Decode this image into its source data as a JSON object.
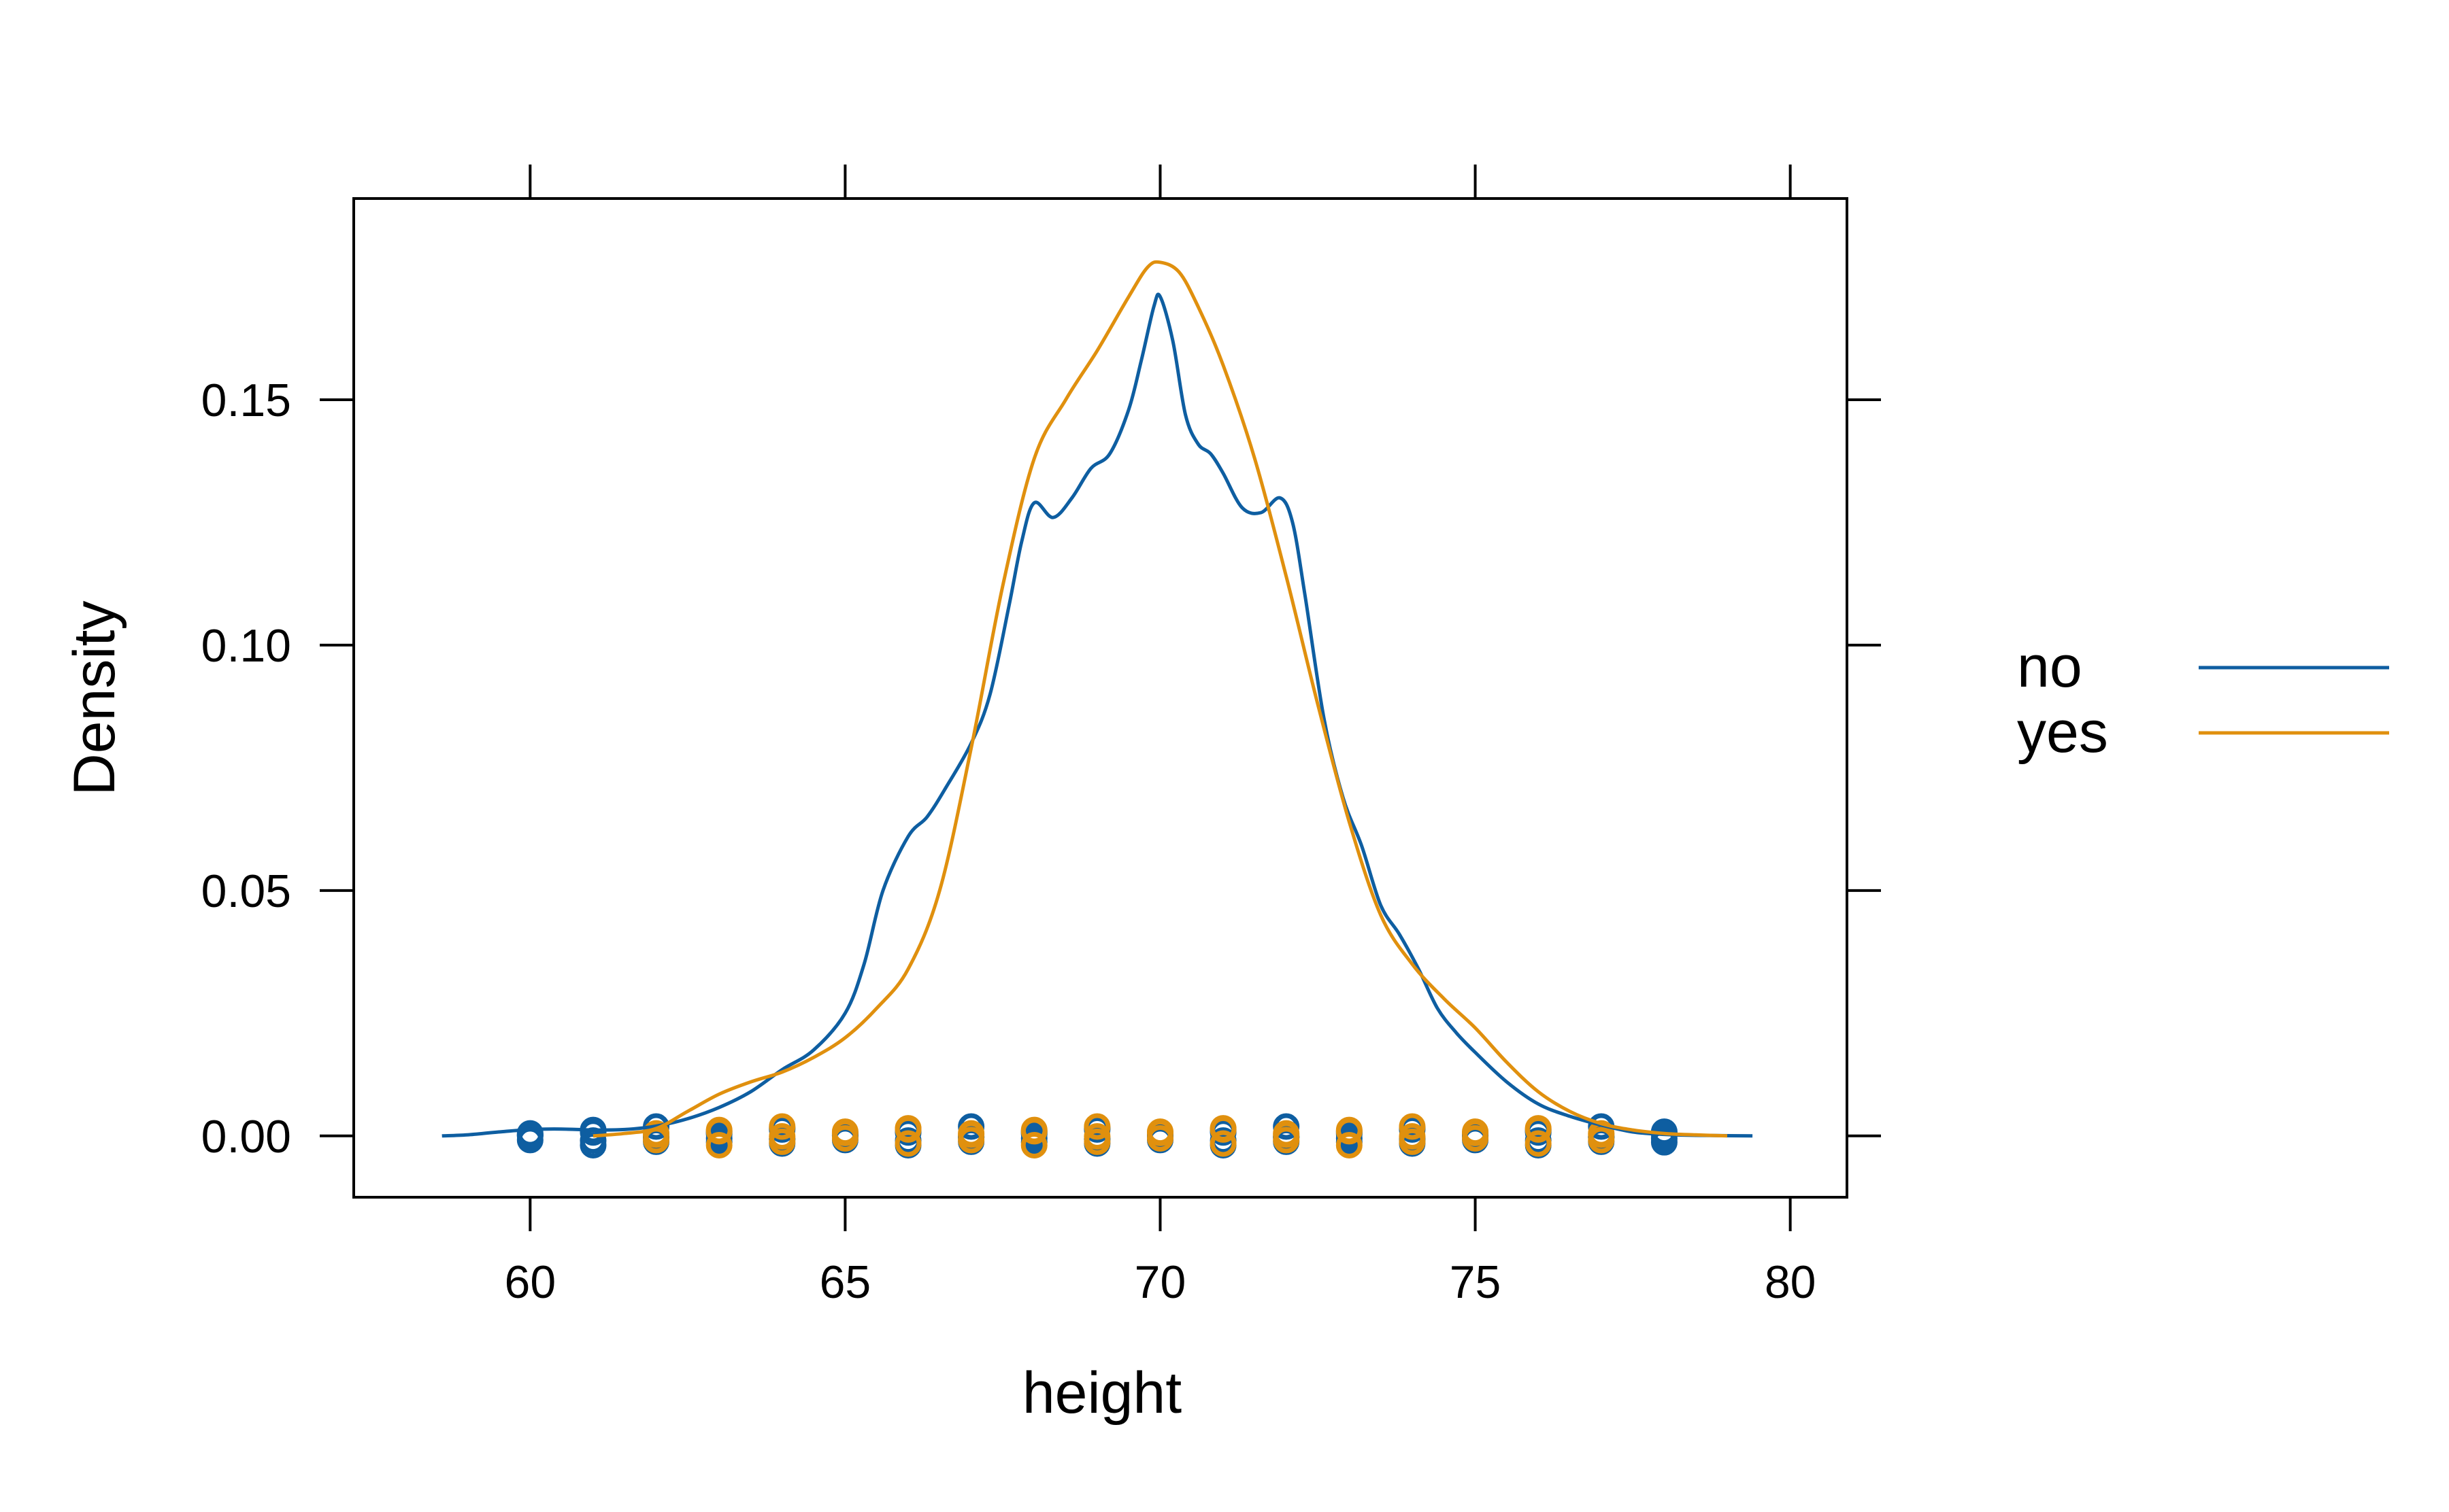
{
  "chart_data": {
    "type": "line",
    "subtype": "density",
    "xlabel": "height",
    "ylabel": "Density",
    "xlim": [
      57.2,
      80.9
    ],
    "ylim": [
      -0.0125,
      0.191
    ],
    "x_ticks": [
      60,
      65,
      70,
      75,
      80
    ],
    "x_tick_labels": [
      "60",
      "65",
      "70",
      "75",
      "80"
    ],
    "y_ticks": [
      0.0,
      0.05,
      0.1,
      0.15
    ],
    "y_tick_labels": [
      "0.00",
      "0.05",
      "0.10",
      "0.15"
    ],
    "grid": false,
    "legend": {
      "position": "right",
      "entries": [
        "no",
        "yes"
      ]
    },
    "series": [
      {
        "name": "no",
        "color": "#0e5ea1",
        "density_x": [
          58.6,
          59.0,
          59.5,
          60.0,
          60.5,
          61.0,
          61.5,
          62.0,
          62.5,
          63.0,
          63.5,
          64.0,
          64.5,
          65.0,
          65.3,
          65.6,
          66.0,
          66.3,
          66.6,
          67.0,
          67.3,
          67.6,
          67.8,
          68.0,
          68.3,
          68.6,
          68.9,
          69.2,
          69.5,
          69.7,
          69.9,
          70.0,
          70.2,
          70.4,
          70.6,
          70.8,
          71.0,
          71.3,
          71.6,
          71.9,
          72.1,
          72.3,
          72.6,
          72.9,
          73.2,
          73.5,
          73.8,
          74.1,
          74.4,
          74.7,
          75.0,
          75.5,
          76.0,
          76.5,
          77.0,
          77.5,
          78.0,
          78.5,
          79.4
        ],
        "density_y": [
          0.0,
          0.0002,
          0.0008,
          0.0013,
          0.0014,
          0.0012,
          0.0013,
          0.002,
          0.0035,
          0.0058,
          0.009,
          0.0135,
          0.0175,
          0.025,
          0.035,
          0.05,
          0.061,
          0.065,
          0.071,
          0.08,
          0.09,
          0.108,
          0.121,
          0.129,
          0.126,
          0.13,
          0.136,
          0.139,
          0.148,
          0.158,
          0.169,
          0.171,
          0.162,
          0.147,
          0.141,
          0.139,
          0.135,
          0.128,
          0.127,
          0.13,
          0.125,
          0.11,
          0.085,
          0.069,
          0.059,
          0.047,
          0.041,
          0.034,
          0.026,
          0.021,
          0.017,
          0.011,
          0.0065,
          0.004,
          0.0022,
          0.0008,
          0.0003,
          0.0001,
          0.0
        ],
        "points": [
          60,
          61,
          62,
          63,
          64,
          65,
          66,
          67,
          68,
          69,
          70,
          71,
          72,
          73,
          74,
          75,
          76,
          77,
          78
        ]
      },
      {
        "name": "yes",
        "color": "#e0900e",
        "density_x": [
          61.0,
          61.5,
          62.0,
          62.5,
          63.0,
          63.5,
          64.0,
          64.5,
          65.0,
          65.5,
          66.0,
          66.5,
          67.0,
          67.5,
          68.0,
          68.5,
          69.0,
          69.5,
          69.8,
          70.0,
          70.3,
          70.6,
          71.0,
          71.5,
          72.0,
          72.5,
          73.0,
          73.5,
          74.0,
          74.5,
          75.0,
          75.5,
          76.0,
          76.5,
          77.0,
          77.5,
          78.0,
          78.5,
          79.0
        ],
        "density_y": [
          0.0,
          0.0005,
          0.0015,
          0.005,
          0.0085,
          0.011,
          0.013,
          0.016,
          0.02,
          0.026,
          0.034,
          0.05,
          0.079,
          0.112,
          0.138,
          0.15,
          0.16,
          0.171,
          0.177,
          0.178,
          0.176,
          0.169,
          0.157,
          0.138,
          0.114,
          0.088,
          0.064,
          0.045,
          0.035,
          0.028,
          0.022,
          0.015,
          0.009,
          0.005,
          0.0025,
          0.0012,
          0.0005,
          0.0002,
          0.0
        ],
        "points": [
          62,
          63,
          64,
          65,
          66,
          67,
          68,
          69,
          70,
          71,
          72,
          73,
          74,
          75,
          76,
          77
        ]
      }
    ]
  }
}
